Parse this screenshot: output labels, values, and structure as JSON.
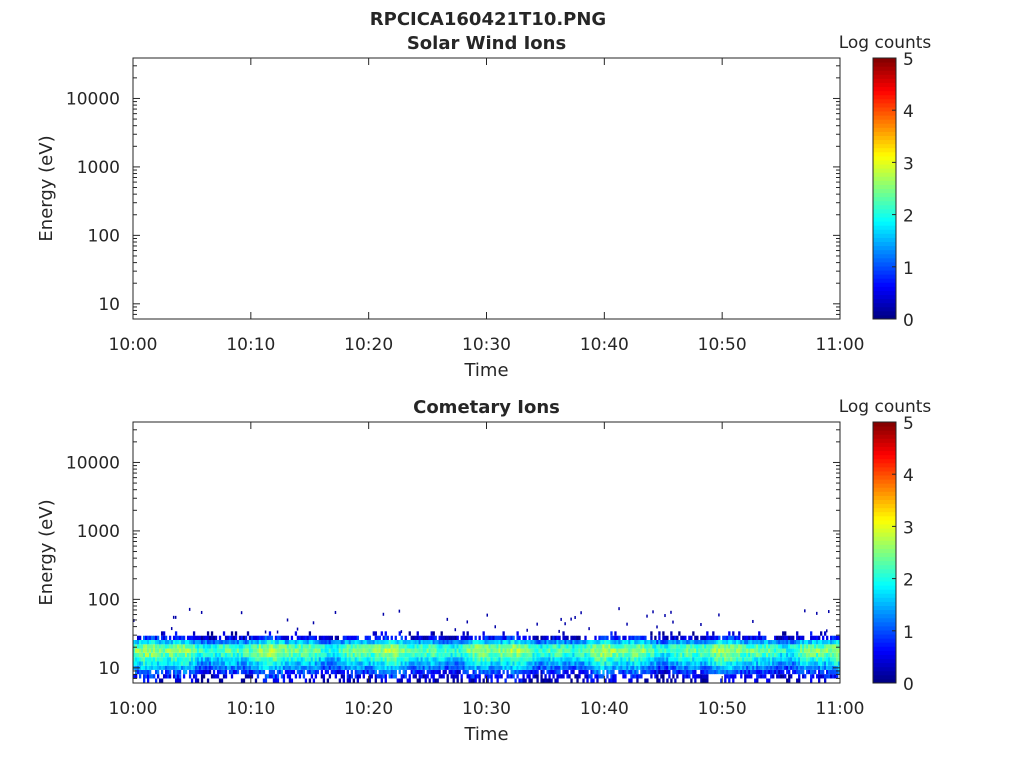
{
  "figure_title": "RPCICA160421T10.PNG",
  "chart_data": [
    {
      "type": "heatmap",
      "title": "Solar Wind Ions",
      "xlabel": "Time",
      "ylabel": "Energy (eV)",
      "x_ticks": [
        "10:00",
        "10:10",
        "10:20",
        "10:30",
        "10:40",
        "10:50",
        "11:00"
      ],
      "x_range_minutes": [
        0,
        60
      ],
      "y_scale": "log",
      "ylim": [
        6,
        39000
      ],
      "y_ticks": [
        10,
        100,
        1000,
        10000
      ],
      "y_tick_labels": [
        "10",
        "100",
        "1000",
        "10000"
      ],
      "colorbar": {
        "label": "Log counts",
        "range": [
          0,
          5
        ],
        "ticks": [
          "0",
          "1",
          "2",
          "3",
          "4",
          "5"
        ],
        "colormap": "jet"
      },
      "band_profile": []
    },
    {
      "type": "heatmap",
      "title": "Cometary Ions",
      "xlabel": "Time",
      "ylabel": "Energy (eV)",
      "x_ticks": [
        "10:00",
        "10:10",
        "10:20",
        "10:30",
        "10:40",
        "10:50",
        "11:00"
      ],
      "x_range_minutes": [
        0,
        60
      ],
      "y_scale": "log",
      "ylim": [
        6,
        39000
      ],
      "y_ticks": [
        10,
        100,
        1000,
        10000
      ],
      "y_tick_labels": [
        "10",
        "100",
        "1000",
        "10000"
      ],
      "colorbar": {
        "label": "Log counts",
        "range": [
          0,
          5
        ],
        "ticks": [
          "0",
          "1",
          "2",
          "3",
          "4",
          "5"
        ],
        "colormap": "jet"
      },
      "band_profile": [
        {
          "energy_eV": 6.5,
          "log_counts": 0.3,
          "coverage": 0.35
        },
        {
          "energy_eV": 7.5,
          "log_counts": 0.6,
          "coverage": 0.6
        },
        {
          "energy_eV": 8.7,
          "log_counts": 0.9,
          "coverage": 0.85
        },
        {
          "energy_eV": 10,
          "log_counts": 1.3,
          "coverage": 1
        },
        {
          "energy_eV": 11.5,
          "log_counts": 1.6,
          "coverage": 1
        },
        {
          "energy_eV": 13.3,
          "log_counts": 1.9,
          "coverage": 1
        },
        {
          "energy_eV": 15.4,
          "log_counts": 2.2,
          "coverage": 1
        },
        {
          "energy_eV": 17.8,
          "log_counts": 2.4,
          "coverage": 1
        },
        {
          "energy_eV": 20.5,
          "log_counts": 2.2,
          "coverage": 1
        },
        {
          "energy_eV": 23.7,
          "log_counts": 1.5,
          "coverage": 1
        },
        {
          "energy_eV": 27.4,
          "log_counts": 0.6,
          "coverage": 0.8
        },
        {
          "energy_eV": 31.6,
          "log_counts": 0.3,
          "coverage": 0.15
        }
      ],
      "sparse_points_energy_range_eV": [
        35,
        80
      ],
      "sparse_points_log_counts": 0.2
    }
  ]
}
